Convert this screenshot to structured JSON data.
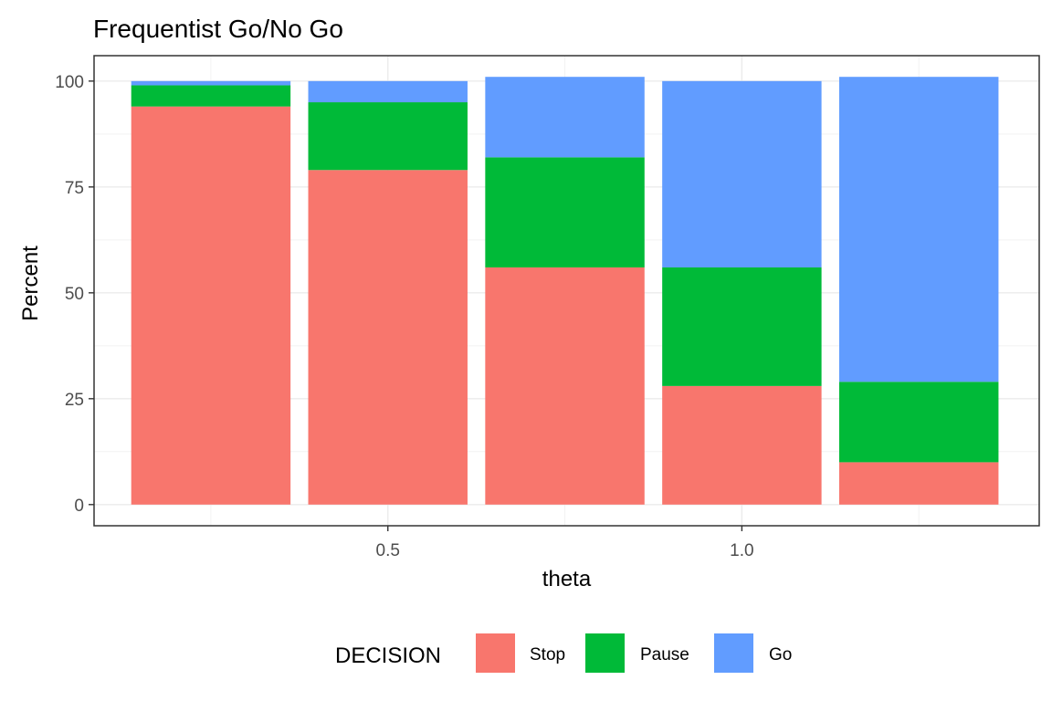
{
  "chart_data": {
    "type": "bar",
    "stacked": true,
    "title": "Frequentist Go/No Go",
    "xlabel": "theta",
    "ylabel": "Percent",
    "x_positions": [
      0.25,
      0.5,
      0.75,
      1.0,
      1.25
    ],
    "xlim": [
      0.085,
      1.42
    ],
    "x_ticks": [
      0.5,
      1.0
    ],
    "x_tick_labels": [
      "0.5",
      "1.0"
    ],
    "ylim": [
      -5,
      106
    ],
    "y_ticks": [
      0,
      25,
      50,
      75,
      100
    ],
    "y_tick_labels": [
      "0",
      "25",
      "50",
      "75",
      "100"
    ],
    "grid": true,
    "legend": {
      "title": "DECISION",
      "position": "bottom"
    },
    "series": [
      {
        "name": "Stop",
        "color": "#F8766D",
        "values": [
          94,
          79,
          56,
          28,
          10
        ]
      },
      {
        "name": "Pause",
        "color": "#00BA38",
        "values": [
          5,
          16,
          26,
          28,
          19
        ]
      },
      {
        "name": "Go",
        "color": "#619CFF",
        "values": [
          1,
          5,
          19,
          44,
          72
        ]
      }
    ]
  }
}
